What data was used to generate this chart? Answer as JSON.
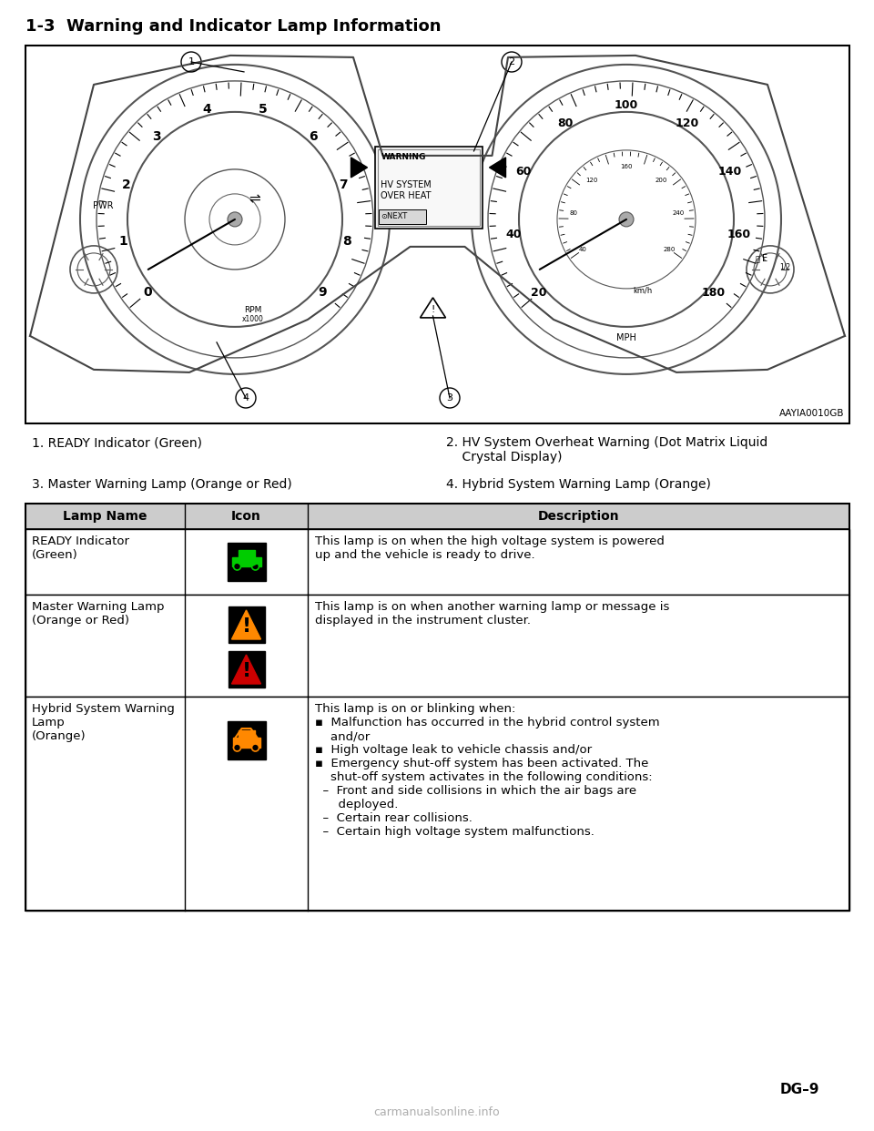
{
  "title": "1-3  Warning and Indicator Lamp Information",
  "page_number": "DG–9",
  "watermark": "carmanualsonline.info",
  "image_ref": "AAYIA0010GB",
  "caption1": "1. READY Indicator (Green)",
  "caption2": "2. HV System Overheat Warning (Dot Matrix Liquid\n    Crystal Display)",
  "caption3": "3. Master Warning Lamp (Orange or Red)",
  "caption4": "4. Hybrid System Warning Lamp (Orange)",
  "table_headers": [
    "Lamp Name",
    "Icon",
    "Description"
  ],
  "row1_name": "READY Indicator\n(Green)",
  "row1_desc": "This lamp is on when the high voltage system is powered\nup and the vehicle is ready to drive.",
  "row2_name": "Master Warning Lamp\n(Orange or Red)",
  "row2_desc": "This lamp is on when another warning lamp or message is\ndisplayed in the instrument cluster.",
  "row3_name": "Hybrid System Warning\nLamp\n(Orange)",
  "row3_desc": "This lamp is on or blinking when:\n▪  Malfunction has occurred in the hybrid control system\n    and/or\n▪  High voltage leak to vehicle chassis and/or\n▪  Emergency shut-off system has been activated. The\n    shut-off system activates in the following conditions:\n  –  Front and side collisions in which the air bags are\n      deployed.\n  –  Certain rear collisions.\n  –  Certain high voltage system malfunctions.",
  "bg_color": "#ffffff",
  "text_color": "#000000",
  "header_bg": "#cccccc",
  "table_border": "#000000",
  "icon1_bg": "#000000",
  "icon1_color": "#00cc00",
  "icon2_bg": "#000000",
  "icon2_color": "#ff8800",
  "icon3_bg": "#000000",
  "icon3_color": "#cc0000",
  "icon4_bg": "#000000",
  "icon4_color": "#ff8800",
  "cluster_line_color": "#444444",
  "gauge_line_color": "#555555"
}
